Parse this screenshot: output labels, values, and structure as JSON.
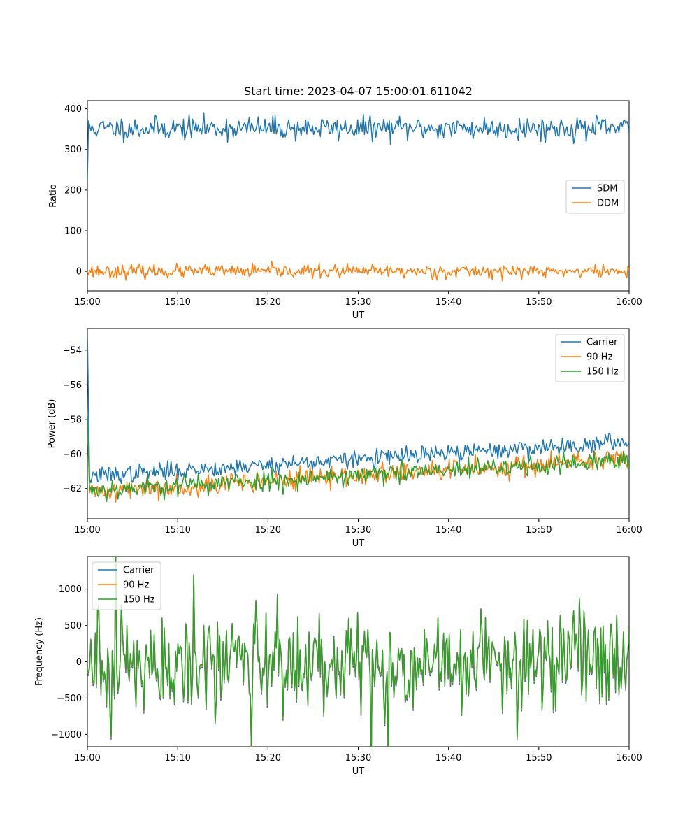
{
  "title": "Start time: 2023-04-07 15:00:01.611042",
  "chart_data": [
    {
      "type": "line",
      "title": "Start time: 2023-04-07 15:00:01.611042",
      "xlabel": "UT",
      "ylabel": "Ratio",
      "xlim": [
        "15:00",
        "16:00"
      ],
      "xticks": [
        "15:00",
        "15:10",
        "15:20",
        "15:30",
        "15:40",
        "15:50",
        "16:00"
      ],
      "ylim": [
        -48,
        420
      ],
      "yticks": [
        0,
        100,
        200,
        300,
        400
      ],
      "ytick_labels": [
        "0",
        "100",
        "200",
        "300",
        "400"
      ],
      "grid": false,
      "legend_position": "center-right",
      "series": [
        {
          "name": "SDM",
          "color": "#1f77b4",
          "mean": 352,
          "noise": 14,
          "start": 226,
          "seed": 11
        },
        {
          "name": "DDM",
          "color": "#ff7f0e",
          "mean": 0,
          "noise": 8,
          "start": 0,
          "seed": 23
        }
      ]
    },
    {
      "type": "line",
      "xlabel": "UT",
      "ylabel": "Power (dB)",
      "xlim": [
        "15:00",
        "16:00"
      ],
      "xticks": [
        "15:00",
        "15:10",
        "15:20",
        "15:30",
        "15:40",
        "15:50",
        "16:00"
      ],
      "ylim": [
        -63.75,
        -52.75
      ],
      "yticks": [
        -62,
        -60,
        -58,
        -56,
        -54
      ],
      "ytick_labels": [
        "−62",
        "−60",
        "−58",
        "−56",
        "−54"
      ],
      "grid": false,
      "legend_position": "top-right",
      "series": [
        {
          "name": "Carrier",
          "color": "#1f77b4",
          "trend_start": -61.3,
          "trend_end": -59.3,
          "noise": 0.25,
          "start": -53.1,
          "seed": 37
        },
        {
          "name": "90 Hz",
          "color": "#ff7f0e",
          "trend_start": -62.2,
          "trend_end": -60.3,
          "noise": 0.3,
          "start": -58.3,
          "seed": 41
        },
        {
          "name": "150 Hz",
          "color": "#2ca02c",
          "trend_start": -62.1,
          "trend_end": -60.4,
          "noise": 0.3,
          "start": -57.6,
          "seed": 53
        }
      ]
    },
    {
      "type": "line",
      "xlabel": "UT",
      "ylabel": "Frequency (Hz)",
      "xlim": [
        "15:00",
        "16:00"
      ],
      "xticks": [
        "15:00",
        "15:10",
        "15:20",
        "15:30",
        "15:40",
        "15:50",
        "16:00"
      ],
      "ylim": [
        -1170,
        1450
      ],
      "yticks": [
        -1000,
        -500,
        0,
        500,
        1000
      ],
      "ytick_labels": [
        "−1000",
        "−500",
        "0",
        "500",
        "1000"
      ],
      "grid": false,
      "legend_position": "top-left",
      "series": [
        {
          "name": "Carrier",
          "color": "#1f77b4",
          "scale": 1.0,
          "offset": -40
        },
        {
          "name": "90 Hz",
          "color": "#ff7f0e",
          "scale": 1.0,
          "offset": -15
        },
        {
          "name": "150 Hz",
          "color": "#2ca02c",
          "scale": 1.0,
          "offset": 0
        }
      ],
      "base_signal": {
        "mean": 0,
        "noise": 330,
        "seed": 71
      }
    }
  ]
}
